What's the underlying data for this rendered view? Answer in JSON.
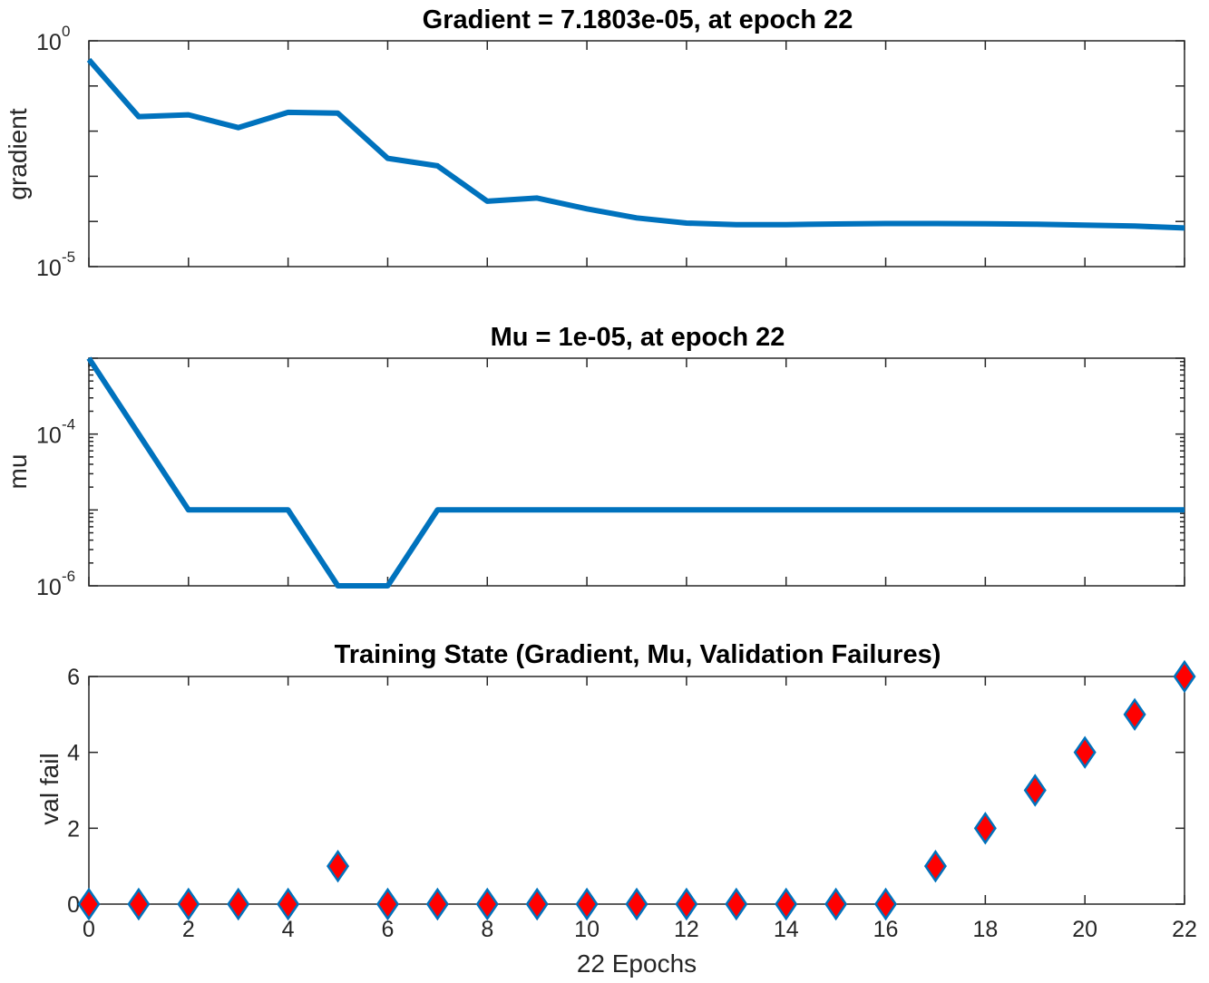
{
  "chart_data": [
    {
      "type": "line",
      "title": "Gradient = 7.1803e-05, at epoch 22",
      "xlabel": "",
      "ylabel": "gradient",
      "yscale": "log",
      "ylim": [
        1e-05,
        1
      ],
      "xlim": [
        0,
        22
      ],
      "ytick_labels": [
        {
          "value": 1,
          "base": "10",
          "exp": "0"
        },
        {
          "value": 1e-05,
          "base": "10",
          "exp": "-5"
        }
      ],
      "series": [
        {
          "name": "gradient",
          "color": "#0072BD",
          "x": [
            0,
            1,
            2,
            3,
            4,
            5,
            6,
            7,
            8,
            9,
            10,
            11,
            12,
            13,
            14,
            15,
            16,
            17,
            18,
            19,
            20,
            21,
            22
          ],
          "y": [
            0.38,
            0.021,
            0.023,
            0.012,
            0.026,
            0.025,
            0.0025,
            0.0017,
            0.00028,
            0.00033,
            0.00019,
            0.00012,
            9.2e-05,
            8.5e-05,
            8.5e-05,
            8.8e-05,
            9e-05,
            9e-05,
            8.9e-05,
            8.7e-05,
            8.3e-05,
            7.9e-05,
            7.18e-05
          ]
        }
      ]
    },
    {
      "type": "line",
      "title": "Mu = 1e-05, at epoch 22",
      "xlabel": "",
      "ylabel": "mu",
      "yscale": "log",
      "ylim": [
        1e-06,
        0.001
      ],
      "xlim": [
        0,
        22
      ],
      "ytick_labels": [
        {
          "value": 0.0001,
          "base": "10",
          "exp": "-4"
        },
        {
          "value": 1e-06,
          "base": "10",
          "exp": "-6"
        }
      ],
      "series": [
        {
          "name": "mu",
          "color": "#0072BD",
          "x": [
            0,
            1,
            2,
            3,
            4,
            5,
            6,
            7,
            8,
            9,
            10,
            11,
            12,
            13,
            14,
            15,
            16,
            17,
            18,
            19,
            20,
            21,
            22
          ],
          "y": [
            0.001,
            0.0001,
            1e-05,
            1e-05,
            1e-05,
            1e-06,
            1e-06,
            1e-05,
            1e-05,
            1e-05,
            1e-05,
            1e-05,
            1e-05,
            1e-05,
            1e-05,
            1e-05,
            1e-05,
            1e-05,
            1e-05,
            1e-05,
            1e-05,
            1e-05,
            1e-05
          ]
        }
      ]
    },
    {
      "type": "scatter",
      "title": "Training State (Gradient, Mu, Validation Failures)",
      "xlabel": "22 Epochs",
      "ylabel": "val fail",
      "ylim": [
        0,
        6
      ],
      "xlim": [
        0,
        22
      ],
      "yticks": [
        0,
        2,
        4,
        6
      ],
      "xticks": [
        0,
        2,
        4,
        6,
        8,
        10,
        12,
        14,
        16,
        18,
        20,
        22
      ],
      "series": [
        {
          "name": "val fail",
          "marker": "diamond",
          "face_color": "#FF0000",
          "edge_color": "#0072BD",
          "x": [
            0,
            1,
            2,
            3,
            4,
            5,
            6,
            7,
            8,
            9,
            10,
            11,
            12,
            13,
            14,
            15,
            16,
            17,
            18,
            19,
            20,
            21,
            22
          ],
          "y": [
            0,
            0,
            0,
            0,
            0,
            1,
            0,
            0,
            0,
            0,
            0,
            0,
            0,
            0,
            0,
            0,
            0,
            1,
            2,
            3,
            4,
            5,
            6
          ]
        }
      ]
    }
  ]
}
